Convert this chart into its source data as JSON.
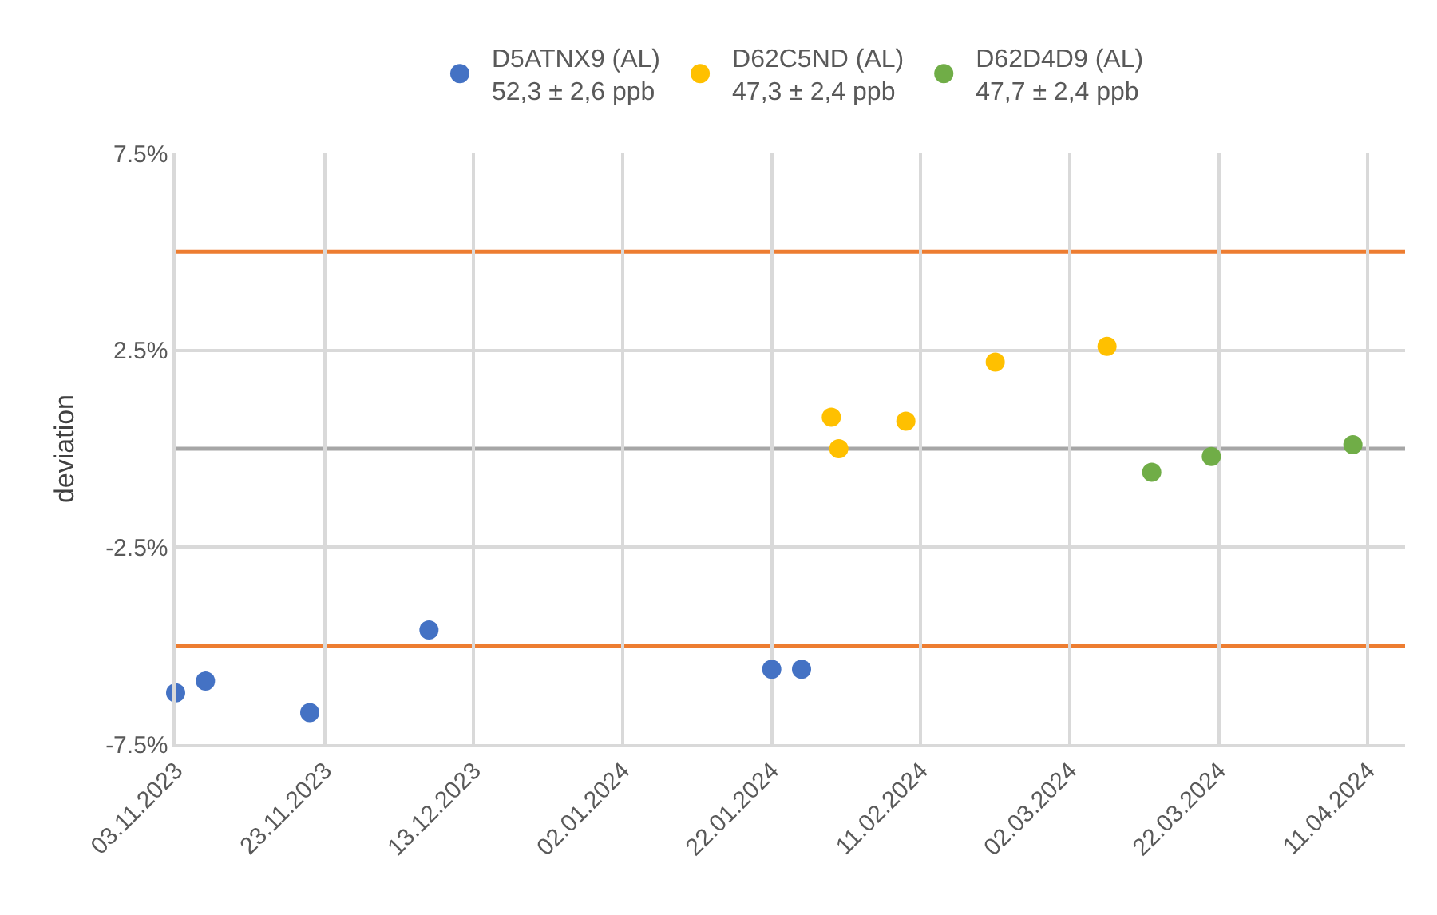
{
  "chart_data": {
    "type": "scatter",
    "ylabel": "deviation",
    "marker": "circle",
    "grid": true,
    "legend": "top",
    "xlim": [
      "2023-11-03",
      "2024-04-16"
    ],
    "xticks": [
      {
        "value": "2023-11-03",
        "label": "03.11.2023"
      },
      {
        "value": "2023-11-23",
        "label": "23.11.2023"
      },
      {
        "value": "2023-12-13",
        "label": "13.12.2023"
      },
      {
        "value": "2024-01-02",
        "label": "02.01.2024"
      },
      {
        "value": "2024-01-22",
        "label": "22.01.2024"
      },
      {
        "value": "2024-02-11",
        "label": "11.02.2024"
      },
      {
        "value": "2024-03-02",
        "label": "02.03.2024"
      },
      {
        "value": "2024-03-22",
        "label": "22.03.2024"
      },
      {
        "value": "2024-04-11",
        "label": "11.04.2024"
      }
    ],
    "ylim": [
      -7.5,
      7.5
    ],
    "yticks": [
      {
        "value": -7.5,
        "label": "-7.5%"
      },
      {
        "value": -2.5,
        "label": "-2.5%"
      },
      {
        "value": 2.5,
        "label": "2.5%"
      },
      {
        "value": 7.5,
        "label": "7.5%"
      }
    ],
    "ref_lines": [
      {
        "axis": "y",
        "value": 5,
        "color": "#ed7d31"
      },
      {
        "axis": "y",
        "value": -5,
        "color": "#ed7d31"
      },
      {
        "axis": "y",
        "value": 0,
        "color": "#a6a6a6"
      }
    ],
    "series": [
      {
        "name": "D5ATNX9 (AL)\n52,3 ± 2,6 ppb",
        "color": "#4472c4",
        "x": [
          "2023-11-03",
          "2023-11-07",
          "2023-11-21",
          "2023-12-07",
          "2024-01-22",
          "2024-01-26"
        ],
        "values": [
          -6.2,
          -5.9,
          -6.7,
          -4.6,
          -5.6,
          -5.6
        ]
      },
      {
        "name": "D62C5ND (AL)\n47,3 ± 2,4 ppb",
        "color": "#ffc000",
        "x": [
          "2024-01-30",
          "2024-01-31",
          "2024-02-09",
          "2024-02-21",
          "2024-03-07"
        ],
        "values": [
          0.8,
          0.0,
          0.7,
          2.2,
          2.6
        ]
      },
      {
        "name": "D62D4D9 (AL)\n47,7 ± 2,4 ppb",
        "color": "#70ad47",
        "x": [
          "2024-03-13",
          "2024-03-21",
          "2024-04-09"
        ],
        "values": [
          -0.6,
          -0.2,
          0.1
        ]
      }
    ]
  }
}
